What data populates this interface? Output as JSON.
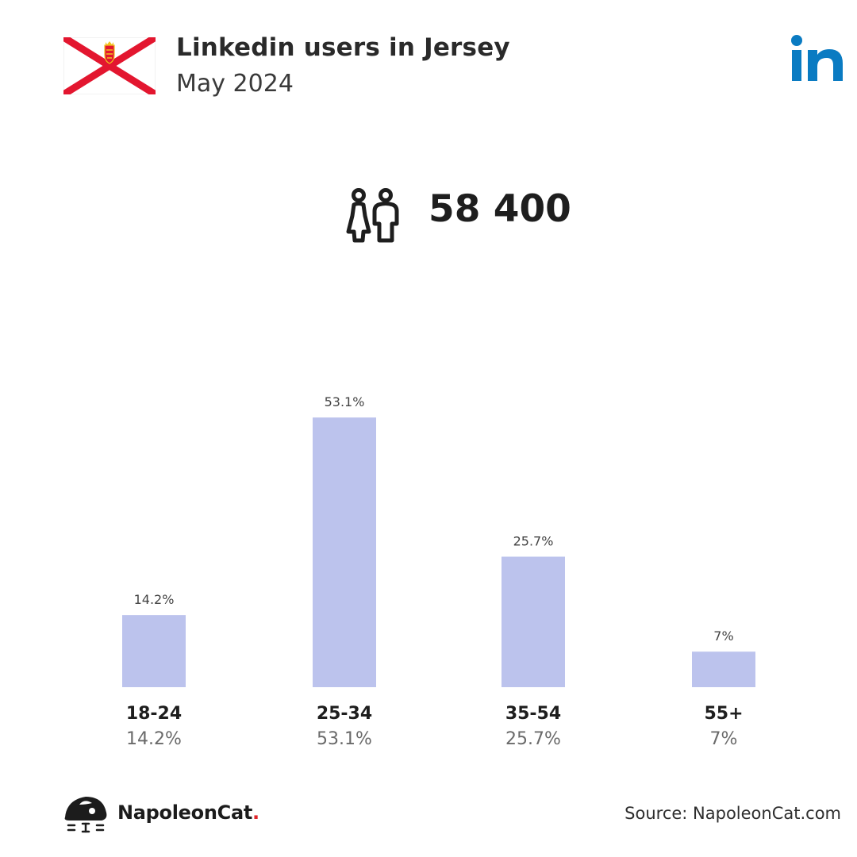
{
  "header": {
    "title": "Linkedin users in Jersey",
    "subtitle": "May 2024",
    "flag_icon": "jersey-flag-icon",
    "logo_icon": "linkedin-logo-icon",
    "logo_text": "in",
    "logo_color": "#0a7bc2"
  },
  "total": {
    "icon": "users-icon",
    "value": "58 400"
  },
  "chart_data": {
    "type": "bar",
    "categories": [
      "18-24",
      "25-34",
      "35-54",
      "55+"
    ],
    "values": [
      14.2,
      53.1,
      25.7,
      7
    ],
    "value_labels": [
      "14.2%",
      "53.1%",
      "25.7%",
      "7%"
    ],
    "title": "",
    "xlabel": "",
    "ylabel": "",
    "ylim": [
      0,
      55
    ],
    "bar_color": "#bcc3ed",
    "grid": false,
    "legend": "none"
  },
  "footer": {
    "brand_name": "NapoleonCat",
    "brand_dot": ".",
    "brand_dot_color": "#e0262b",
    "brand_icon": "napoleoncat-logo-icon",
    "source": "Source: NapoleonCat.com"
  }
}
